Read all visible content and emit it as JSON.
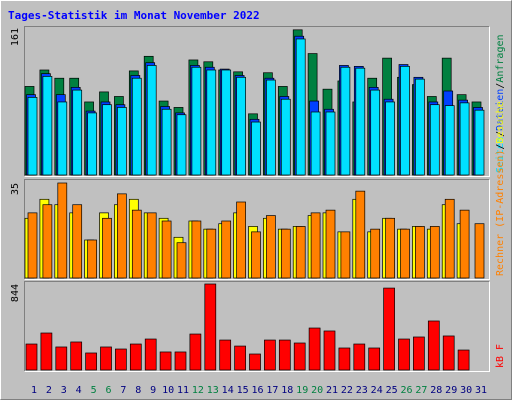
{
  "chart_data": [
    {
      "type": "bar",
      "title": "Tages-Statistik im Monat November 2022",
      "ylim": [
        0,
        161
      ],
      "yticks": [
        161
      ],
      "legend_separator": "/",
      "series": [
        {
          "name": "Anfragen",
          "color": "#008040",
          "values": [
            97,
            115,
            106,
            106,
            80,
            91,
            86,
            114,
            130,
            81,
            74,
            126,
            124,
            115,
            113,
            67,
            112,
            97,
            159,
            133,
            94,
            103,
            80,
            106,
            128,
            107,
            99,
            86,
            128,
            88,
            80
          ]
        },
        {
          "name": "Dateien",
          "color": "#0040ff",
          "values": [
            88,
            111,
            88,
            96,
            70,
            80,
            77,
            109,
            123,
            75,
            68,
            120,
            118,
            116,
            109,
            61,
            106,
            86,
            152,
            81,
            72,
            120,
            119,
            96,
            83,
            121,
            107,
            80,
            92,
            82,
            74
          ]
        },
        {
          "name": "Seiten",
          "color": "#00e0ff",
          "values": [
            85,
            108,
            80,
            93,
            68,
            77,
            74,
            106,
            120,
            72,
            66,
            118,
            115,
            115,
            107,
            58,
            104,
            83,
            149,
            69,
            69,
            118,
            117,
            93,
            80,
            119,
            105,
            77,
            76,
            79,
            71
          ]
        }
      ]
    },
    {
      "type": "bar",
      "ylim": [
        0,
        35
      ],
      "yticks": [
        35
      ],
      "legend_separator": "/",
      "series": [
        {
          "name": "Besuche",
          "color": "#ffff00",
          "values": [
            22,
            29,
            27,
            24,
            14,
            24,
            27,
            29,
            24,
            22,
            15,
            21,
            18,
            20,
            24,
            19,
            22,
            18,
            19,
            23,
            24,
            17,
            29,
            17,
            22,
            18,
            19,
            18,
            27,
            20,
            null
          ]
        },
        {
          "name": "Rechner (IP-Adressen)",
          "color": "#ff8000",
          "values": [
            24,
            27,
            35,
            27,
            14,
            22,
            31,
            25,
            24,
            21,
            13,
            21,
            18,
            21,
            28,
            17,
            23,
            18,
            19,
            24,
            25,
            17,
            32,
            18,
            22,
            18,
            19,
            19,
            29,
            25,
            20
          ]
        }
      ]
    },
    {
      "type": "bar",
      "ylim": [
        0,
        844
      ],
      "yticks": [
        844
      ],
      "categories": [
        "1",
        "2",
        "3",
        "4",
        "5",
        "6",
        "7",
        "8",
        "9",
        "10",
        "11",
        "12",
        "13",
        "14",
        "15",
        "16",
        "17",
        "18",
        "19",
        "20",
        "21",
        "22",
        "23",
        "24",
        "25",
        "26",
        "27",
        "28",
        "29",
        "30",
        "31"
      ],
      "weekend": [
        4,
        5,
        11,
        12,
        18,
        19,
        25,
        26
      ],
      "weekend_color": "#008040",
      "category_color": "#000080",
      "series": [
        {
          "name": "kB F",
          "color": "#ff0000",
          "values": [
            255,
            363,
            226,
            275,
            167,
            226,
            206,
            255,
            304,
            177,
            177,
            353,
            844,
            294,
            235,
            157,
            294,
            294,
            265,
            412,
            383,
            216,
            255,
            216,
            804,
            304,
            324,
            481,
            334,
            196,
            null
          ]
        }
      ]
    }
  ]
}
